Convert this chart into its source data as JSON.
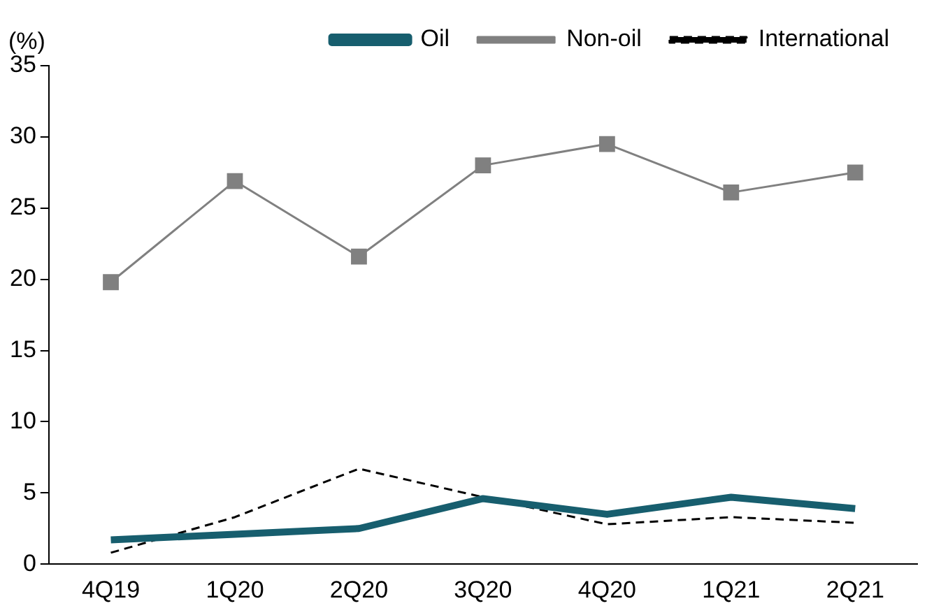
{
  "chart_data": {
    "type": "line",
    "ylabel": "(%)",
    "categories": [
      "4Q19",
      "1Q20",
      "2Q20",
      "3Q20",
      "4Q20",
      "1Q21",
      "2Q21"
    ],
    "series": [
      {
        "name": "Oil",
        "color": "#175e6e",
        "marker": "none",
        "line_style": "solid",
        "values": [
          1.7,
          2.1,
          2.5,
          4.6,
          3.5,
          4.7,
          3.9
        ]
      },
      {
        "name": "Non-oil",
        "color": "#808080",
        "marker": "square",
        "line_style": "solid",
        "values": [
          19.8,
          26.9,
          21.6,
          28.0,
          29.5,
          26.1,
          27.5
        ]
      },
      {
        "name": "International",
        "color": "#000000",
        "marker": "none",
        "line_style": "dashed",
        "values": [
          0.8,
          3.3,
          6.7,
          4.7,
          2.8,
          3.3,
          2.9
        ]
      }
    ],
    "ylim": [
      0,
      35
    ],
    "yticks": [
      0,
      5,
      10,
      15,
      20,
      25,
      30,
      35
    ],
    "grid": false,
    "legend": "top"
  }
}
